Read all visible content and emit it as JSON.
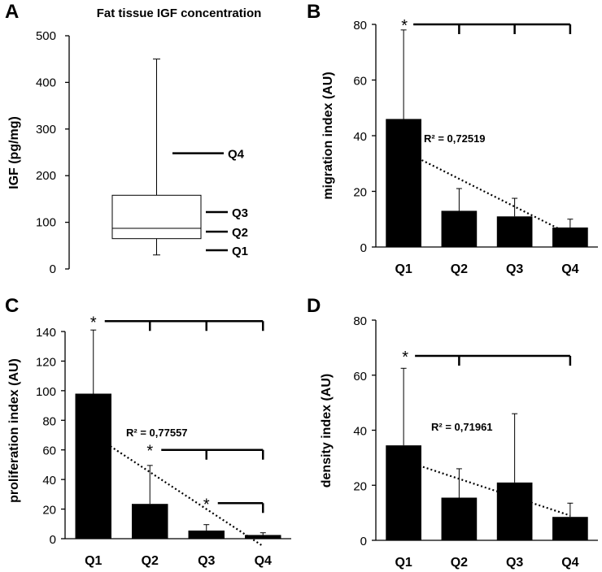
{
  "chart_data": [
    {
      "panel": "A",
      "type": "box",
      "title": "Fat tissue IGF concentration",
      "ylabel": "IGF (pg/mg)",
      "ylim": [
        0,
        500
      ],
      "yticks": [
        0,
        100,
        200,
        300,
        400,
        500
      ],
      "box": {
        "min": 30,
        "q1": 65,
        "median": 87,
        "q3": 158,
        "max": 450
      },
      "quartile_markers": [
        {
          "label": "Q4",
          "value": 248
        },
        {
          "label": "Q3",
          "value": 122
        },
        {
          "label": "Q2",
          "value": 80
        },
        {
          "label": "Q1",
          "value": 40
        }
      ]
    },
    {
      "panel": "B",
      "type": "bar",
      "categories": [
        "Q1",
        "Q2",
        "Q3",
        "Q4"
      ],
      "values": [
        46,
        13,
        11,
        7
      ],
      "errors": [
        32,
        8,
        6.5,
        3
      ],
      "ylabel": "migration index (AU)",
      "ylim": [
        0,
        80
      ],
      "yticks": [
        0,
        20,
        40,
        60,
        80
      ],
      "trend": {
        "from": 34.5,
        "to": 4.5,
        "r2_label": "R² = 0,72519"
      },
      "significance": [
        {
          "y": 80,
          "from": 0,
          "to": [
            1,
            2,
            3
          ],
          "star": "*"
        }
      ]
    },
    {
      "panel": "C",
      "type": "bar",
      "categories": [
        "Q1",
        "Q2",
        "Q3",
        "Q4"
      ],
      "values": [
        98,
        23.5,
        5.5,
        2.5
      ],
      "errors": [
        43,
        26,
        4,
        1.5
      ],
      "ylabel": "proliferation index (AU)",
      "ylim": [
        0,
        140
      ],
      "yticks": [
        0,
        20,
        40,
        60,
        80,
        100,
        120,
        140
      ],
      "trend": {
        "from": 70,
        "to": -5,
        "r2_label": "R² = 0,77557"
      },
      "significance": [
        {
          "y": 147,
          "from": 0,
          "to": [
            1,
            2,
            3
          ],
          "star": "*"
        },
        {
          "y": 60,
          "from": 1,
          "to": [
            2,
            3
          ],
          "star": "*"
        },
        {
          "y": 24,
          "from": 2,
          "to": [
            3
          ],
          "star": "*"
        }
      ]
    },
    {
      "panel": "D",
      "type": "bar",
      "categories": [
        "Q1",
        "Q2",
        "Q3",
        "Q4"
      ],
      "values": [
        34.5,
        15.5,
        21,
        8.5
      ],
      "errors": [
        28,
        10.5,
        25,
        5
      ],
      "ylabel": "density index (AU)",
      "ylim": [
        0,
        80
      ],
      "yticks": [
        0,
        20,
        40,
        60,
        80
      ],
      "trend": {
        "from": 29,
        "to": 9,
        "r2_label": "R² = 0,71961"
      },
      "significance": [
        {
          "y": 67,
          "from": 0,
          "to": [
            1,
            3
          ],
          "star": "*"
        }
      ]
    }
  ]
}
